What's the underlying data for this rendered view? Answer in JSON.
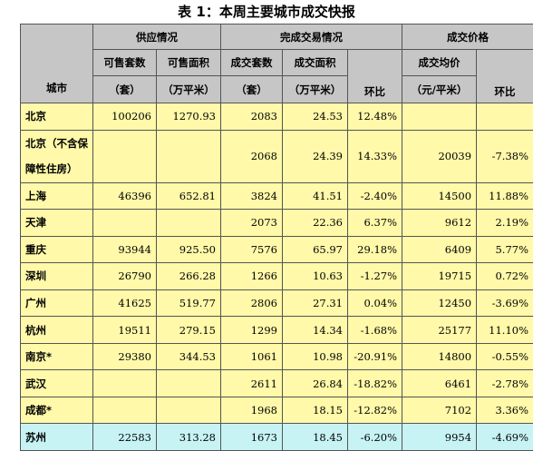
{
  "title": "表 1：本周主要城市成交快报",
  "headers": {
    "city": "城市",
    "supply": "供应情况",
    "deal": "完成交易情况",
    "price": "成交价格",
    "sale_units": "可售套数",
    "sale_area": "可售面积",
    "deal_units": "成交套数",
    "deal_area": "成交面积",
    "avg_price": "成交均价",
    "unit_tao": "（套）",
    "unit_area": "（万平米）",
    "unit_tao2": "（套）",
    "unit_area2": "（万平米）",
    "hb": "环比",
    "unit_price": "（元/平米）",
    "hb2": "环比"
  },
  "rows": [
    {
      "city": "北京",
      "sale_units": "100206",
      "sale_area": "1270.93",
      "deal_units": "2083",
      "deal_area": "24.53",
      "deal_hb": "12.48%",
      "avg_price": "",
      "price_hb": ""
    },
    {
      "city": "北京（不含保障性住房）",
      "sale_units": "",
      "sale_area": "",
      "deal_units": "2068",
      "deal_area": "24.39",
      "deal_hb": "14.33%",
      "avg_price": "20039",
      "price_hb": "-7.38%"
    },
    {
      "city": "上海",
      "sale_units": "46396",
      "sale_area": "652.81",
      "deal_units": "3824",
      "deal_area": "41.51",
      "deal_hb": "-2.40%",
      "avg_price": "14500",
      "price_hb": "11.88%"
    },
    {
      "city": "天津",
      "sale_units": "",
      "sale_area": "",
      "deal_units": "2073",
      "deal_area": "22.36",
      "deal_hb": "6.37%",
      "avg_price": "9612",
      "price_hb": "2.19%"
    },
    {
      "city": "重庆",
      "sale_units": "93944",
      "sale_area": "925.50",
      "deal_units": "7576",
      "deal_area": "65.97",
      "deal_hb": "29.18%",
      "avg_price": "6409",
      "price_hb": "5.77%"
    },
    {
      "city": "深圳",
      "sale_units": "26790",
      "sale_area": "266.28",
      "deal_units": "1266",
      "deal_area": "10.63",
      "deal_hb": "-1.27%",
      "avg_price": "19715",
      "price_hb": "0.72%"
    },
    {
      "city": "广州",
      "sale_units": "41625",
      "sale_area": "519.77",
      "deal_units": "2806",
      "deal_area": "27.31",
      "deal_hb": "0.04%",
      "avg_price": "12450",
      "price_hb": "-3.69%"
    },
    {
      "city": "杭州",
      "sale_units": "19511",
      "sale_area": "279.15",
      "deal_units": "1299",
      "deal_area": "14.34",
      "deal_hb": "-1.68%",
      "avg_price": "25177",
      "price_hb": "11.10%"
    },
    {
      "city": "南京*",
      "sale_units": "29380",
      "sale_area": "344.53",
      "deal_units": "1061",
      "deal_area": "10.98",
      "deal_hb": "-20.91%",
      "avg_price": "14800",
      "price_hb": "-0.55%"
    },
    {
      "city": "武汉",
      "sale_units": "",
      "sale_area": "",
      "deal_units": "2611",
      "deal_area": "26.84",
      "deal_hb": "-18.82%",
      "avg_price": "6461",
      "price_hb": "-2.78%"
    },
    {
      "city": "成都*",
      "sale_units": "",
      "sale_area": "",
      "deal_units": "1968",
      "deal_area": "18.15",
      "deal_hb": "-12.82%",
      "avg_price": "7102",
      "price_hb": "3.36%"
    },
    {
      "city": "苏州",
      "sale_units": "22583",
      "sale_area": "313.28",
      "deal_units": "1673",
      "deal_area": "18.45",
      "deal_hb": "-6.20%",
      "avg_price": "9954",
      "price_hb": "-4.69%"
    }
  ],
  "colors": {
    "header_bg": "#c6c6c6",
    "row_bg": "#fff9a9",
    "last_row_bg": "#c7f3f5"
  }
}
